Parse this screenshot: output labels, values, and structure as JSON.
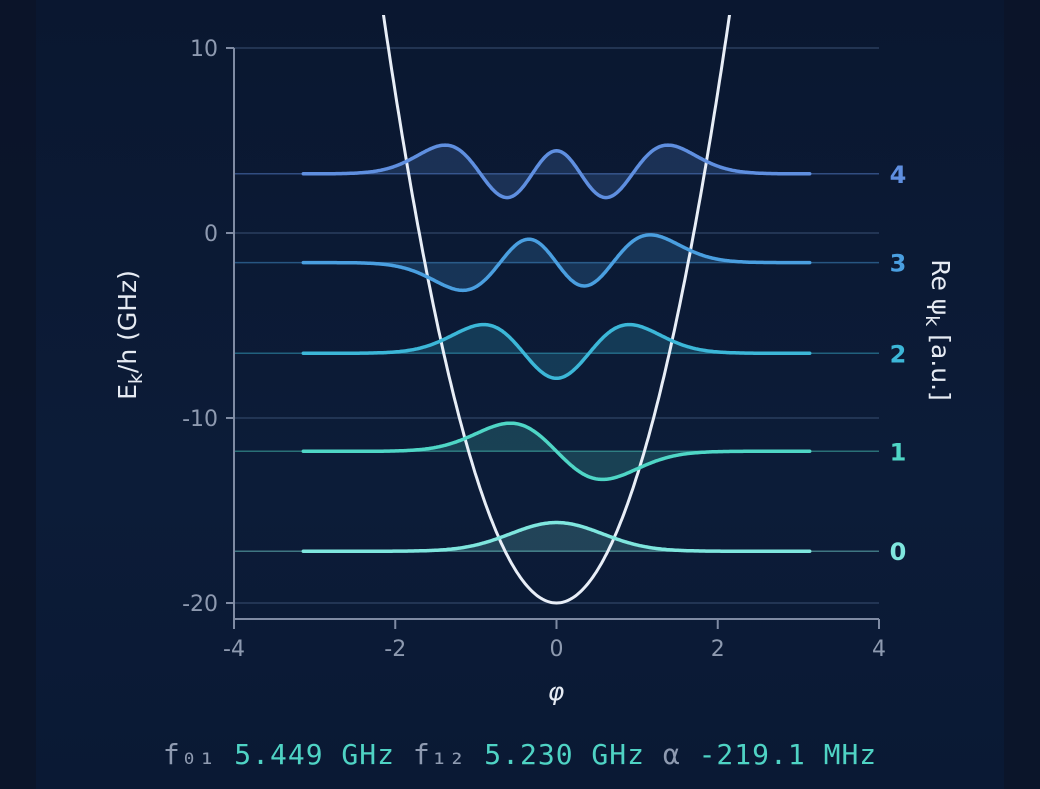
{
  "chart_data": {
    "type": "line",
    "xlabel": "φ",
    "ylabel": "E",
    "ylabel_sub": "k",
    "ylabel_suffix": "/h (GHz)",
    "right_label": "Re ψ",
    "right_label_sub": "k",
    "right_label_suffix": " [a.u.]",
    "xlim": [
      -4,
      4
    ],
    "ylim": [
      -21,
      10
    ],
    "x_ticks": [
      -4,
      -2,
      0,
      2,
      4
    ],
    "y_ticks": [
      10,
      0,
      -10,
      -20
    ],
    "grid": "horizontal",
    "potential": {
      "x_range": [
        -2.15,
        2.15
      ],
      "formula": "E = -20 + 6.9 * phi^2",
      "color": "#e8eef7"
    },
    "levels": [
      {
        "k": "0",
        "energy": -17.2,
        "color": "#7fe6de",
        "amplitude": 1.55
      },
      {
        "k": "1",
        "energy": -11.8,
        "color": "#4fd6c6",
        "amplitude": 1.52
      },
      {
        "k": "2",
        "energy": -6.5,
        "color": "#3cb7d8",
        "amplitude": 1.55
      },
      {
        "k": "3",
        "energy": -1.6,
        "color": "#4a9fe0",
        "amplitude": 1.5
      },
      {
        "k": "4",
        "energy": 3.2,
        "color": "#5f8fe0",
        "amplitude": 1.55
      }
    ],
    "wavefunction_x_range": [
      -3.14,
      3.14
    ]
  },
  "footer": {
    "f01_label": "f₀₁",
    "f01_value": "5.449 GHz",
    "f12_label": "f₁₂",
    "f12_value": "5.230 GHz",
    "alpha_label": "α",
    "alpha_value": "-219.1 MHz"
  }
}
